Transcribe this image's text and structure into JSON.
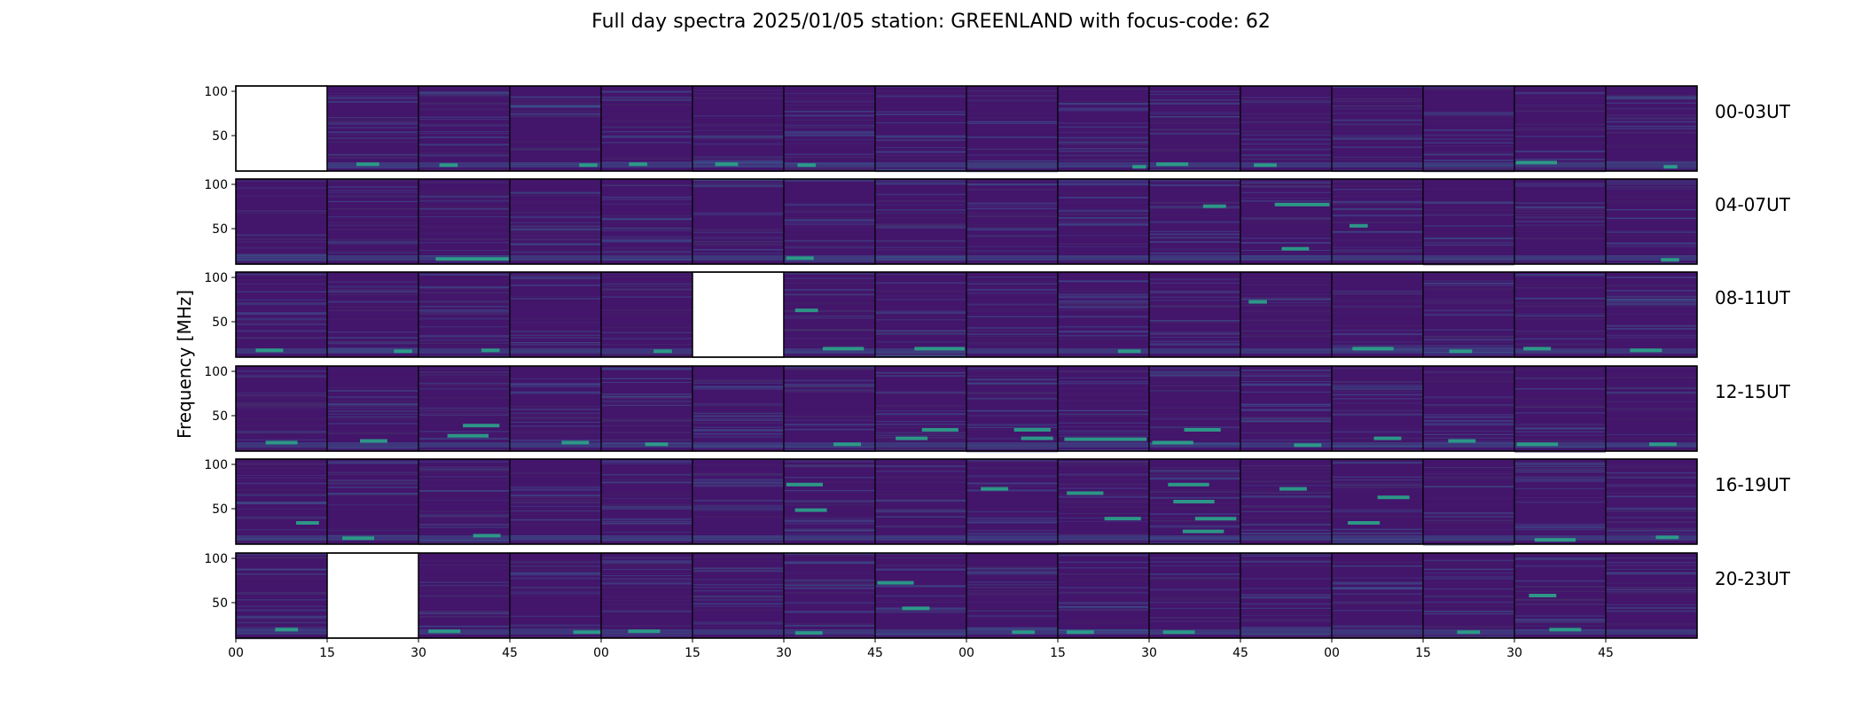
{
  "chart_data": {
    "type": "heatmap",
    "title": "Full day spectra 2025/01/05 station: GREENLAND with focus-code: 62",
    "ylabel": "Frequency [MHz]",
    "xlabel": "",
    "y_ticks": [
      100,
      50
    ],
    "x_ticks": [
      "00",
      "15",
      "30",
      "45",
      "00",
      "15",
      "30",
      "45",
      "00",
      "15",
      "30",
      "45",
      "00",
      "15",
      "30",
      "45"
    ],
    "colormap": "viridis",
    "grid": false,
    "rows": [
      {
        "label": "00-03UT",
        "missing_panels": [
          0
        ],
        "highlights": [
          [
            1,
            0.92,
            0.25
          ],
          [
            2,
            0.93,
            0.2
          ],
          [
            3,
            0.93,
            0.2
          ],
          [
            4,
            0.92,
            0.2
          ],
          [
            5,
            0.92,
            0.25
          ],
          [
            6,
            0.93,
            0.2
          ],
          [
            9,
            0.95,
            0.15
          ],
          [
            10,
            0.92,
            0.35
          ],
          [
            11,
            0.93,
            0.25
          ],
          [
            14,
            0.9,
            0.45
          ],
          [
            15,
            0.95,
            0.15
          ]
        ]
      },
      {
        "label": "04-07UT",
        "missing_panels": [],
        "highlights": [
          [
            2,
            0.94,
            0.8
          ],
          [
            6,
            0.93,
            0.3
          ],
          [
            10,
            0.32,
            0.25
          ],
          [
            11,
            0.3,
            0.6
          ],
          [
            11,
            0.82,
            0.3
          ],
          [
            12,
            0.55,
            0.2
          ],
          [
            15,
            0.95,
            0.2
          ]
        ]
      },
      {
        "label": "08-11UT",
        "missing_panels": [
          5
        ],
        "highlights": [
          [
            0,
            0.92,
            0.3
          ],
          [
            1,
            0.93,
            0.2
          ],
          [
            2,
            0.92,
            0.2
          ],
          [
            4,
            0.93,
            0.2
          ],
          [
            6,
            0.9,
            0.45
          ],
          [
            6,
            0.45,
            0.25
          ],
          [
            7,
            0.9,
            0.55
          ],
          [
            9,
            0.93,
            0.25
          ],
          [
            11,
            0.35,
            0.2
          ],
          [
            12,
            0.9,
            0.45
          ],
          [
            13,
            0.93,
            0.25
          ],
          [
            14,
            0.9,
            0.3
          ],
          [
            15,
            0.92,
            0.35
          ]
        ]
      },
      {
        "label": "12-15UT",
        "missing_panels": [],
        "highlights": [
          [
            0,
            0.9,
            0.35
          ],
          [
            1,
            0.88,
            0.3
          ],
          [
            2,
            0.7,
            0.4
          ],
          [
            2,
            0.82,
            0.45
          ],
          [
            3,
            0.9,
            0.3
          ],
          [
            4,
            0.92,
            0.25
          ],
          [
            6,
            0.92,
            0.3
          ],
          [
            7,
            0.75,
            0.4
          ],
          [
            7,
            0.85,
            0.35
          ],
          [
            8,
            0.75,
            0.4
          ],
          [
            8,
            0.85,
            0.35
          ],
          [
            9,
            0.86,
            0.9
          ],
          [
            10,
            0.75,
            0.4
          ],
          [
            10,
            0.9,
            0.45
          ],
          [
            11,
            0.93,
            0.3
          ],
          [
            12,
            0.85,
            0.3
          ],
          [
            13,
            0.88,
            0.3
          ],
          [
            14,
            0.92,
            0.45
          ],
          [
            15,
            0.92,
            0.3
          ]
        ]
      },
      {
        "label": "16-19UT",
        "missing_panels": [],
        "highlights": [
          [
            0,
            0.75,
            0.25
          ],
          [
            1,
            0.93,
            0.35
          ],
          [
            2,
            0.9,
            0.3
          ],
          [
            6,
            0.3,
            0.4
          ],
          [
            6,
            0.6,
            0.35
          ],
          [
            8,
            0.35,
            0.3
          ],
          [
            9,
            0.4,
            0.4
          ],
          [
            9,
            0.7,
            0.4
          ],
          [
            10,
            0.3,
            0.45
          ],
          [
            10,
            0.5,
            0.45
          ],
          [
            10,
            0.7,
            0.45
          ],
          [
            10,
            0.85,
            0.45
          ],
          [
            11,
            0.35,
            0.3
          ],
          [
            12,
            0.45,
            0.35
          ],
          [
            12,
            0.75,
            0.35
          ],
          [
            14,
            0.95,
            0.45
          ],
          [
            15,
            0.92,
            0.25
          ]
        ]
      },
      {
        "label": "20-23UT",
        "missing_panels": [
          1
        ],
        "highlights": [
          [
            0,
            0.9,
            0.25
          ],
          [
            2,
            0.92,
            0.35
          ],
          [
            3,
            0.93,
            0.3
          ],
          [
            4,
            0.92,
            0.35
          ],
          [
            6,
            0.94,
            0.3
          ],
          [
            7,
            0.35,
            0.4
          ],
          [
            7,
            0.65,
            0.3
          ],
          [
            8,
            0.93,
            0.25
          ],
          [
            9,
            0.93,
            0.3
          ],
          [
            10,
            0.93,
            0.35
          ],
          [
            13,
            0.93,
            0.25
          ],
          [
            14,
            0.9,
            0.35
          ],
          [
            14,
            0.5,
            0.3
          ]
        ]
      }
    ]
  }
}
